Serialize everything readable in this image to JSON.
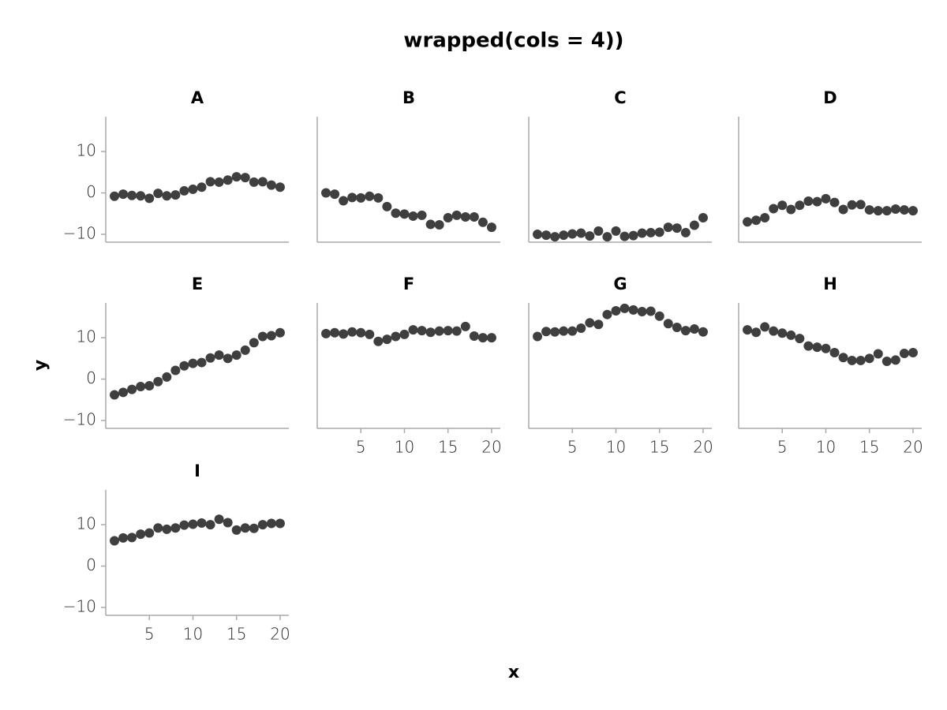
{
  "chart_data": {
    "type": "scatter",
    "title": "wrapped(cols = 4))",
    "xlabel": "x",
    "ylabel": "y",
    "x": [
      1,
      2,
      3,
      4,
      5,
      6,
      7,
      8,
      9,
      10,
      11,
      12,
      13,
      14,
      15,
      16,
      17,
      18,
      19,
      20
    ],
    "xlim": [
      0,
      21
    ],
    "xticks": [
      5,
      10,
      15,
      20
    ],
    "ylim": [
      -11.9,
      18.4
    ],
    "yticks": [
      {
        "value": -10,
        "label": "−10"
      },
      0,
      10
    ],
    "series": [
      {
        "name": "A",
        "color": "#3f3f3f",
        "values": [
          -0.8,
          -0.3,
          -0.6,
          -0.7,
          -1.3,
          -0.1,
          -0.7,
          -0.5,
          0.5,
          0.9,
          1.4,
          2.7,
          2.6,
          3.1,
          3.9,
          3.7,
          2.6,
          2.7,
          1.9,
          1.4
        ]
      },
      {
        "name": "B",
        "color": "#3f3f3f",
        "values": [
          0,
          -0.3,
          -1.9,
          -1.1,
          -1.2,
          -0.8,
          -1.2,
          -3.3,
          -4.9,
          -5.1,
          -5.6,
          -5.4,
          -7.6,
          -7.7,
          -6.0,
          -5.4,
          -5.8,
          -5.8,
          -7.1,
          -8.3
        ]
      },
      {
        "name": "C",
        "color": "#3f3f3f",
        "values": [
          -10,
          -10.2,
          -10.6,
          -10.2,
          -9.9,
          -9.7,
          -10.4,
          -9.2,
          -10.6,
          -9.2,
          -10.5,
          -10.3,
          -9.7,
          -9.6,
          -9.5,
          -8.3,
          -8.5,
          -9.6,
          -7.8,
          -6.0
        ]
      },
      {
        "name": "D",
        "color": "#3f3f3f",
        "values": [
          -7,
          -6.6,
          -6.0,
          -3.8,
          -3.0,
          -4.0,
          -3.0,
          -2.0,
          -2.1,
          -1.4,
          -2.3,
          -4.0,
          -2.9,
          -2.8,
          -4.1,
          -4.3,
          -4.3,
          -3.9,
          -4.1,
          -4.3
        ]
      },
      {
        "name": "E",
        "color": "#3f3f3f",
        "values": [
          -3.8,
          -3.2,
          -2.5,
          -1.8,
          -1.6,
          -0.6,
          0.5,
          2.1,
          3.2,
          3.8,
          4.0,
          5.1,
          5.8,
          5.0,
          5.8,
          7.0,
          8.8,
          10.3,
          10.5,
          11.2
        ]
      },
      {
        "name": "F",
        "color": "#3f3f3f",
        "values": [
          11.0,
          11.2,
          10.9,
          11.4,
          11.2,
          10.8,
          9.1,
          9.6,
          10.3,
          10.8,
          11.9,
          11.7,
          11.3,
          11.6,
          11.7,
          11.6,
          12.7,
          10.4,
          10.0,
          10.0
        ]
      },
      {
        "name": "G",
        "color": "#3f3f3f",
        "values": [
          10.3,
          11.5,
          11.4,
          11.6,
          11.6,
          12.3,
          13.6,
          13.2,
          15.6,
          16.5,
          17.1,
          16.7,
          16.3,
          16.4,
          15.2,
          13.4,
          12.5,
          11.7,
          12.1,
          11.4
        ]
      },
      {
        "name": "H",
        "color": "#3f3f3f",
        "values": [
          11.9,
          11.3,
          12.6,
          11.6,
          11.1,
          10.6,
          9.8,
          8.0,
          7.7,
          7.4,
          6.4,
          5.2,
          4.5,
          4.5,
          5.0,
          6.1,
          4.3,
          4.6,
          6.2,
          6.4
        ]
      },
      {
        "name": "I",
        "color": "#3f3f3f",
        "values": [
          6.1,
          6.8,
          6.9,
          7.7,
          8.0,
          9.2,
          8.9,
          9.2,
          9.9,
          10.1,
          10.4,
          10.0,
          11.3,
          10.5,
          8.7,
          9.2,
          9.1,
          10.0,
          10.3,
          10.3
        ]
      }
    ]
  }
}
